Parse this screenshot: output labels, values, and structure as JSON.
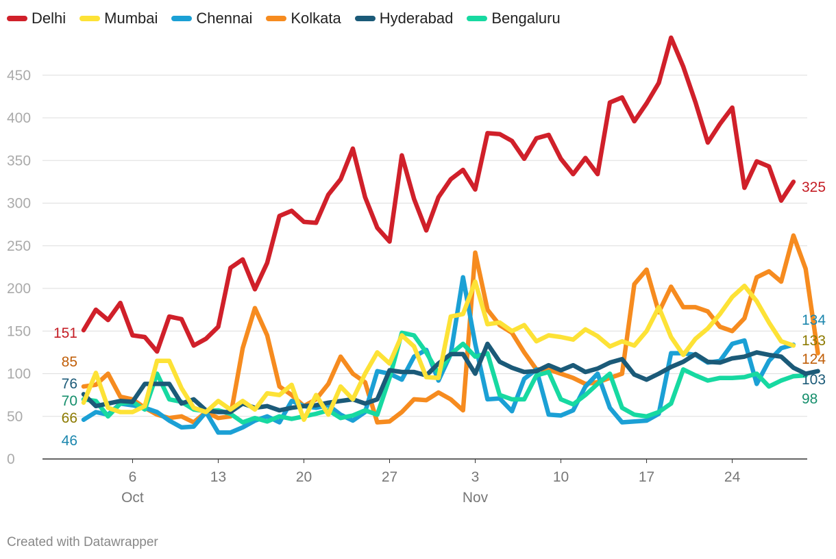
{
  "chart_data": {
    "type": "line",
    "title": "",
    "xlabel": "",
    "ylabel": "",
    "ylim": [
      0,
      490
    ],
    "y_ticks": [
      0,
      50,
      100,
      150,
      200,
      250,
      300,
      350,
      400,
      450
    ],
    "x_ticks": [
      {
        "day": 6,
        "label": "6",
        "month": "Oct"
      },
      {
        "day": 13,
        "label": "13",
        "month": ""
      },
      {
        "day": 20,
        "label": "20",
        "month": ""
      },
      {
        "day": 27,
        "label": "27",
        "month": ""
      },
      {
        "day": 34,
        "label": "3",
        "month": "Nov"
      },
      {
        "day": 41,
        "label": "10",
        "month": ""
      },
      {
        "day": 48,
        "label": "17",
        "month": ""
      },
      {
        "day": 55,
        "label": "24",
        "month": ""
      }
    ],
    "x_start_day": 2,
    "series": [
      {
        "name": "Kolkata",
        "color": "#f68b1f",
        "label_color": "#c05e08",
        "start_label": "85",
        "end_label": "124",
        "values": [
          85,
          87,
          100,
          73,
          70,
          60,
          52,
          48,
          50,
          43,
          55,
          48,
          50,
          130,
          177,
          145,
          85,
          75,
          62,
          70,
          88,
          120,
          100,
          90,
          43,
          44,
          55,
          70,
          69,
          78,
          70,
          57,
          242,
          175,
          157,
          148,
          125,
          105,
          105,
          100,
          95,
          88,
          90,
          95,
          100,
          205,
          222,
          172,
          202,
          178,
          178,
          173,
          155,
          150,
          165,
          213,
          220,
          208,
          262,
          223,
          124
        ]
      },
      {
        "name": "Chennai",
        "color": "#1ba0d5",
        "label_color": "#1a86ad",
        "start_label": "46",
        "end_label": "134",
        "values": [
          46,
          55,
          52,
          65,
          63,
          60,
          55,
          45,
          37,
          38,
          55,
          31,
          31,
          37,
          45,
          50,
          43,
          68,
          62,
          60,
          63,
          52,
          45,
          55,
          103,
          100,
          93,
          120,
          128,
          92,
          123,
          213,
          135,
          70,
          71,
          56,
          94,
          105,
          52,
          51,
          57,
          85,
          100,
          60,
          43,
          44,
          45,
          53,
          124,
          124,
          122,
          113,
          115,
          135,
          139,
          88,
          115,
          130,
          134
        ]
      },
      {
        "name": "Bengaluru",
        "color": "#17d9a1",
        "label_color": "#148e6b",
        "start_label": "70",
        "end_label": "98",
        "values": [
          70,
          68,
          50,
          65,
          67,
          58,
          100,
          70,
          67,
          58,
          56,
          57,
          53,
          43,
          48,
          44,
          50,
          47,
          50,
          53,
          57,
          48,
          51,
          57,
          52,
          95,
          148,
          145,
          125,
          100,
          123,
          135,
          120,
          124,
          75,
          70,
          70,
          98,
          102,
          70,
          64,
          75,
          88,
          100,
          60,
          52,
          50,
          55,
          65,
          105,
          98,
          92,
          95,
          95,
          96,
          100,
          85,
          92,
          97,
          98
        ]
      },
      {
        "name": "Hyderabad",
        "color": "#1b5a78",
        "label_color": "#1b5a78",
        "start_label": "76",
        "end_label": "103",
        "values": [
          76,
          62,
          65,
          68,
          67,
          88,
          88,
          88,
          65,
          70,
          57,
          55,
          55,
          65,
          60,
          62,
          57,
          60,
          62,
          63,
          66,
          68,
          70,
          65,
          70,
          104,
          102,
          102,
          98,
          112,
          123,
          123,
          100,
          135,
          114,
          107,
          102,
          103,
          110,
          104,
          110,
          102,
          106,
          113,
          117,
          99,
          93,
          100,
          108,
          114,
          123,
          114,
          113,
          118,
          120,
          125,
          122,
          120,
          107,
          100,
          103
        ]
      },
      {
        "name": "Mumbai",
        "color": "#fde236",
        "label_color": "#8c7a00",
        "start_label": "66",
        "end_label": "133",
        "values": [
          66,
          101,
          60,
          55,
          55,
          62,
          115,
          115,
          83,
          60,
          55,
          68,
          58,
          68,
          58,
          77,
          75,
          87,
          46,
          75,
          52,
          85,
          70,
          100,
          125,
          112,
          145,
          132,
          96,
          95,
          167,
          170,
          208,
          158,
          160,
          150,
          157,
          138,
          145,
          143,
          140,
          152,
          144,
          132,
          138,
          133,
          150,
          178,
          143,
          122,
          141,
          153,
          170,
          190,
          203,
          185,
          160,
          138,
          133
        ]
      },
      {
        "name": "Delhi",
        "color": "#d0202a",
        "label_color": "#c41c24",
        "start_label": "151",
        "end_label": "325",
        "values": [
          151,
          175,
          163,
          183,
          145,
          143,
          126,
          167,
          164,
          133,
          141,
          155,
          224,
          234,
          199,
          230,
          285,
          291,
          278,
          277,
          310,
          328,
          364,
          307,
          271,
          255,
          356,
          305,
          268,
          307,
          328,
          339,
          316,
          382,
          381,
          373,
          352,
          376,
          380,
          352,
          334,
          353,
          334,
          418,
          424,
          396,
          417,
          441,
          494,
          460,
          418,
          371,
          393,
          412,
          318,
          349,
          343,
          303,
          325
        ]
      }
    ],
    "legend_order": [
      "Delhi",
      "Mumbai",
      "Chennai",
      "Kolkata",
      "Hyderabad",
      "Bengaluru"
    ],
    "legend_placement": "top-left"
  },
  "legend": [
    {
      "label": "Delhi",
      "color": "#d0202a"
    },
    {
      "label": "Mumbai",
      "color": "#fde236"
    },
    {
      "label": "Chennai",
      "color": "#1ba0d5"
    },
    {
      "label": "Kolkata",
      "color": "#f68b1f"
    },
    {
      "label": "Hyderabad",
      "color": "#1b5a78"
    },
    {
      "label": "Bengaluru",
      "color": "#17d9a1"
    }
  ],
  "footer": {
    "credit": "Created with Datawrapper"
  }
}
